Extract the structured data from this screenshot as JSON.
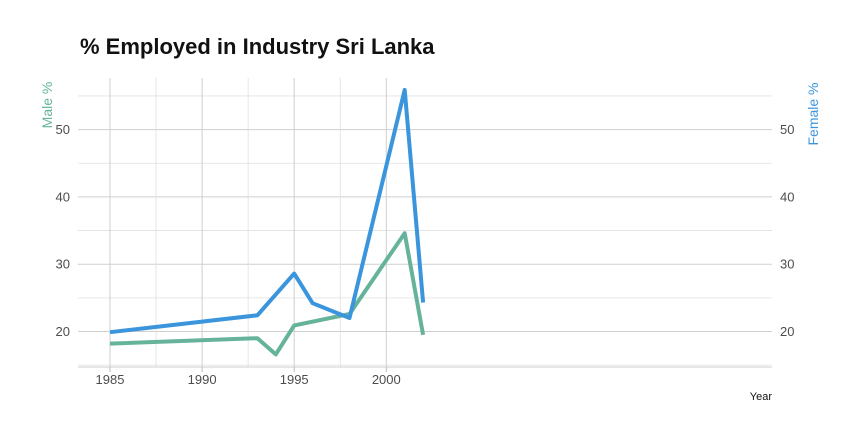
{
  "chart_data": {
    "type": "line",
    "title": "% Employed in Industry Sri Lanka",
    "xlabel": "Year",
    "ylabel_left": "Male %",
    "ylabel_right": "Female %",
    "xlim": [
      1985,
      2002
    ],
    "ylim": [
      15,
      58
    ],
    "x_ticks": [
      1985,
      1990,
      1995,
      2000
    ],
    "y_ticks": [
      20,
      30,
      40,
      50
    ],
    "grid": true,
    "series": [
      {
        "name": "Male %",
        "color": "#66b39b",
        "x": [
          1985,
          1993,
          1994,
          1995,
          1998,
          2001,
          2002
        ],
        "values": [
          18.2,
          19.0,
          16.6,
          20.9,
          22.6,
          34.6,
          19.5
        ]
      },
      {
        "name": "Female %",
        "color": "#3b95dc",
        "x": [
          1985,
          1993,
          1995,
          1996,
          1998,
          2001,
          2002
        ],
        "values": [
          19.9,
          22.4,
          28.6,
          24.2,
          22.0,
          55.9,
          24.3
        ]
      }
    ]
  }
}
